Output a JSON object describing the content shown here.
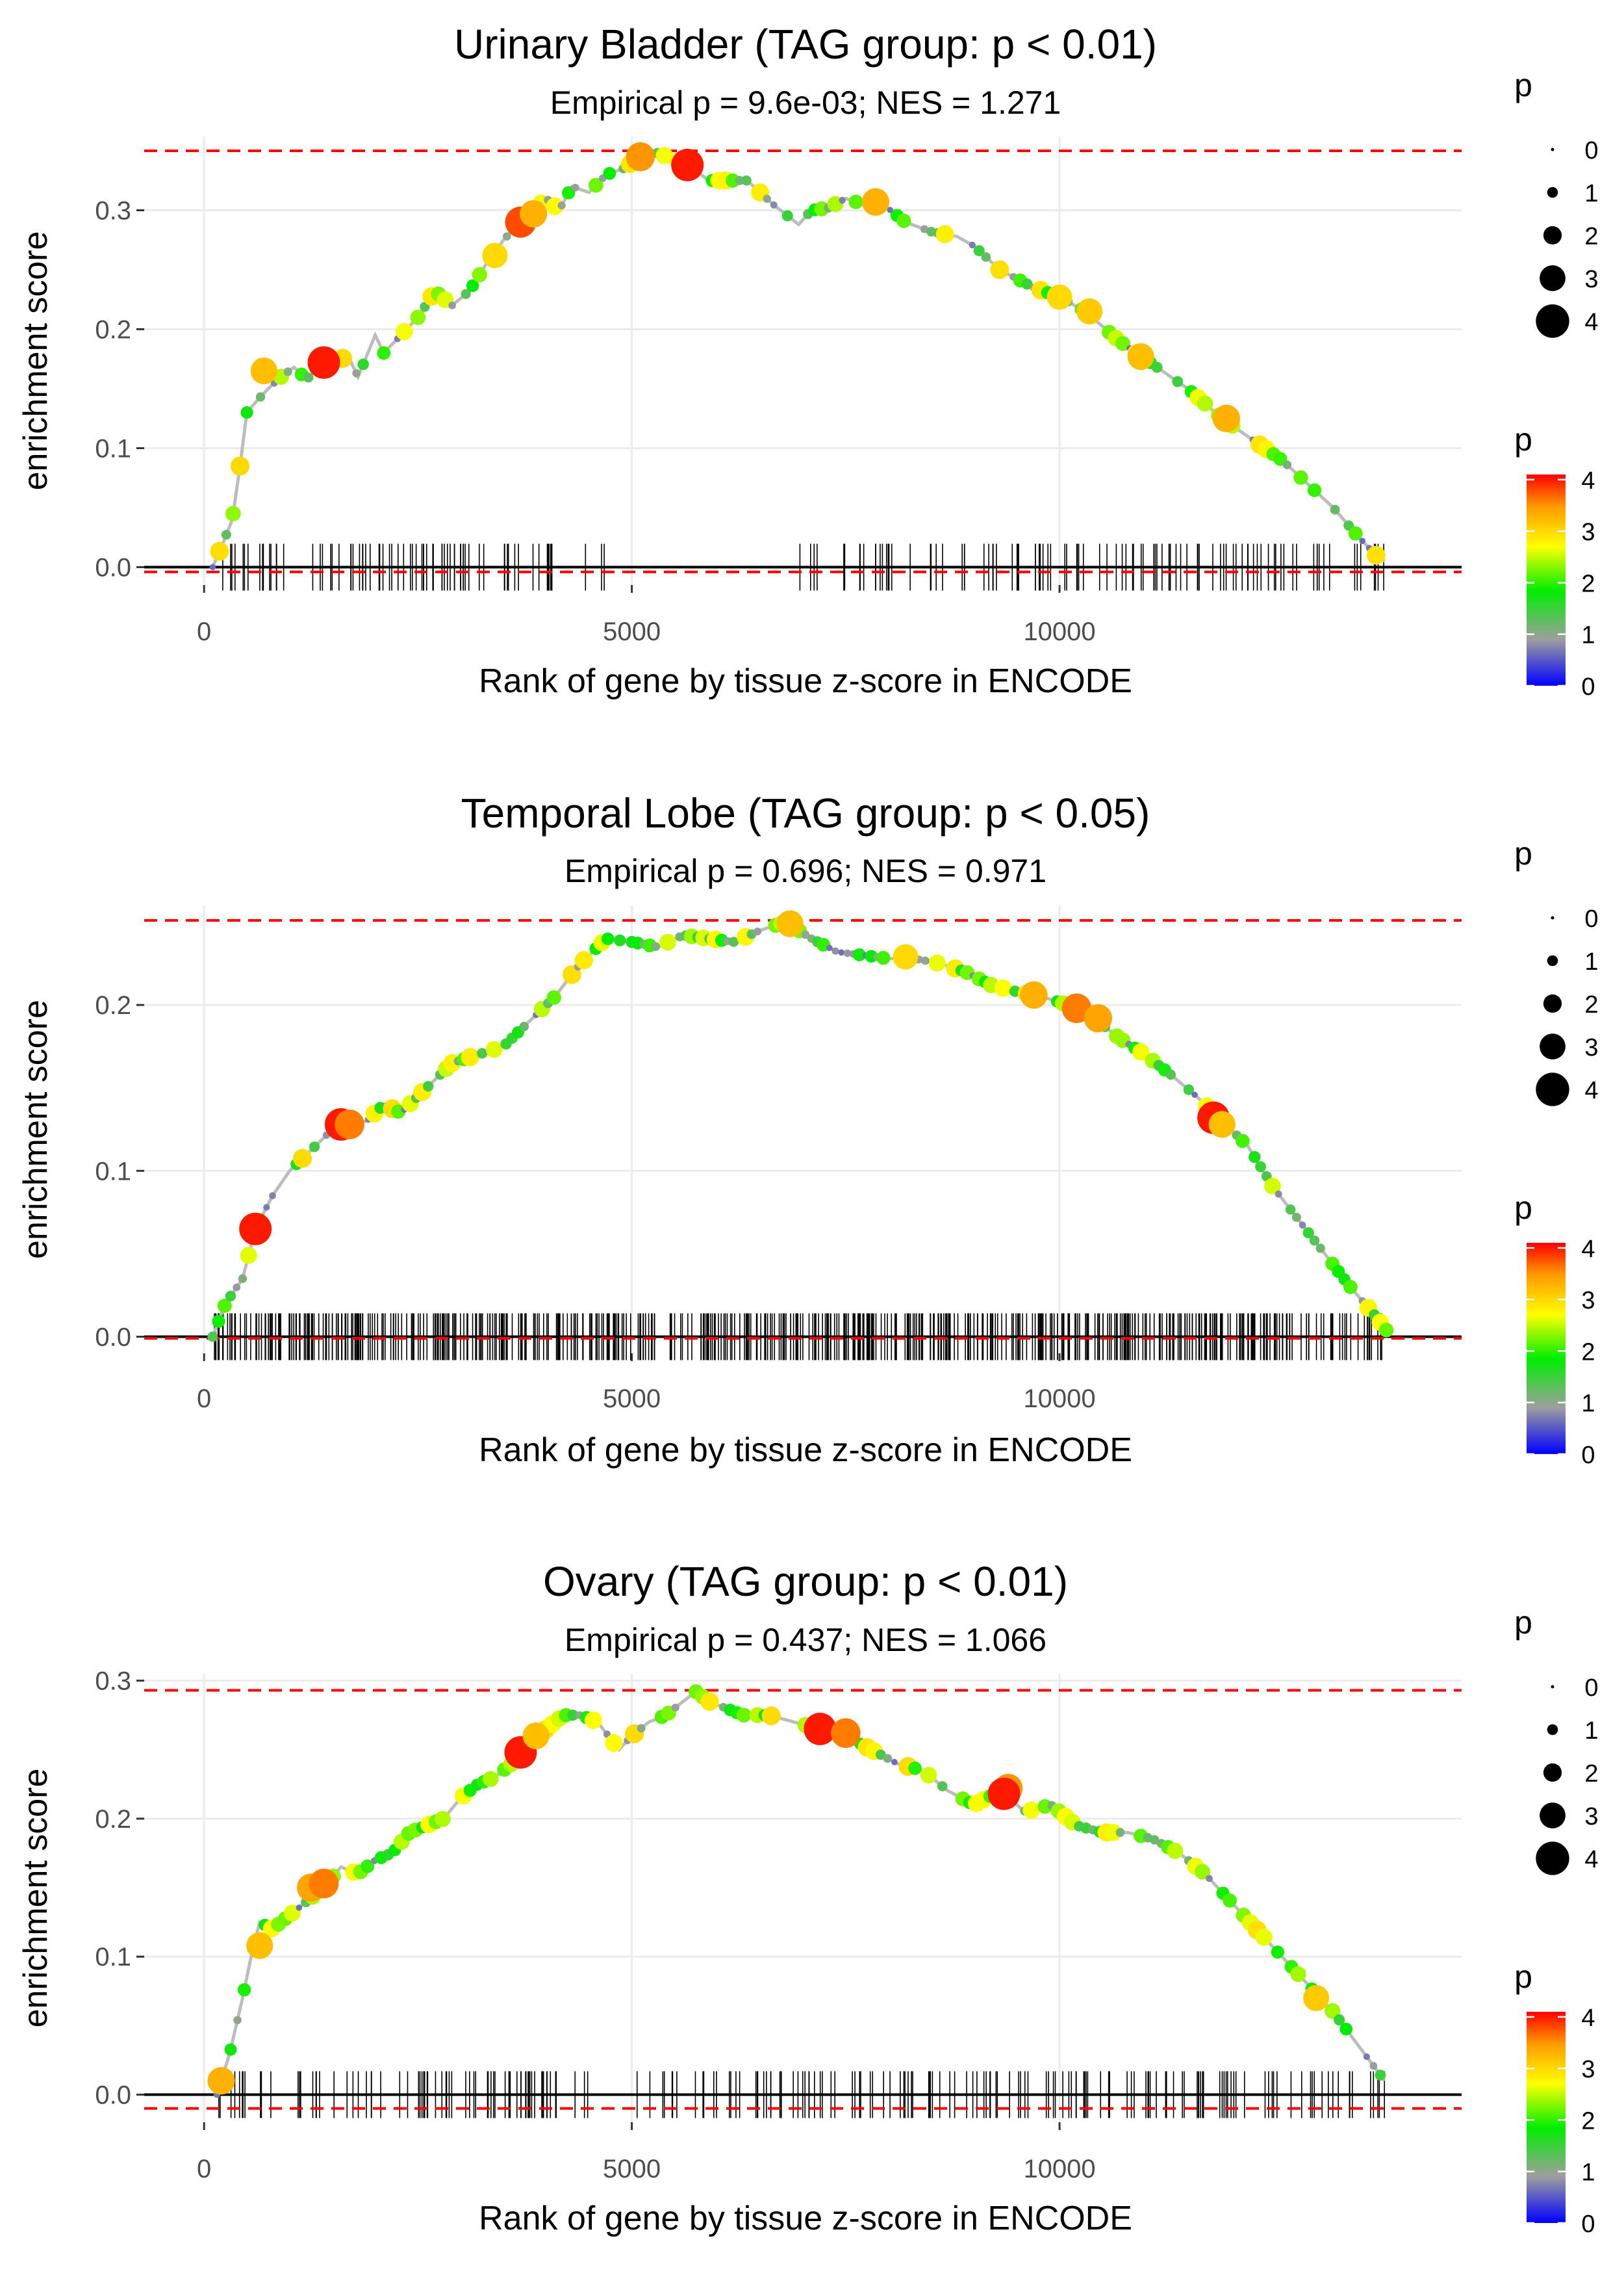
{
  "figure": {
    "x_axis_title": "Rank of gene by tissue z-score in ENCODE",
    "y_axis_title": "enrichment score",
    "legend_size_title": "p",
    "legend_color_title": "p",
    "legend_size_levels": [
      "0",
      "1",
      "2",
      "3",
      "4"
    ],
    "legend_color_ticks": [
      "4",
      "3",
      "2",
      "1",
      "0"
    ],
    "colors": {
      "line": "#bdbdbd",
      "dashed": "#ff0000",
      "grid": "#ebebeb",
      "rug": "#000000",
      "gradient": [
        "#0000ff",
        "#9e9e9e",
        "#00ee00",
        "#ffff00",
        "#ff9900",
        "#ff0000"
      ]
    }
  },
  "chart_data": [
    {
      "type": "line",
      "title": "Urinary Bladder (TAG group: p < 0.01)",
      "subtitle": "Empirical p = 9.6e-03; NES = 1.271",
      "xlabel": "Rank of gene by tissue z-score in ENCODE",
      "ylabel": "enrichment score",
      "xlim": [
        -700,
        14700
      ],
      "ylim": [
        -0.015,
        0.362
      ],
      "xticks": [
        0,
        5000,
        10000
      ],
      "xtick_labels": [
        "0",
        "5000",
        "10000"
      ],
      "yticks": [
        0.0,
        0.1,
        0.2,
        0.3
      ],
      "ytick_labels": [
        "0.0",
        "0.1",
        "0.2",
        "0.3"
      ],
      "dashed_lines": [
        0.35,
        -0.004
      ],
      "curve": [
        [
          100,
          0
        ],
        [
          220,
          0.02
        ],
        [
          330,
          0.04
        ],
        [
          420,
          0.085
        ],
        [
          500,
          0.13
        ],
        [
          620,
          0.14
        ],
        [
          750,
          0.15
        ],
        [
          900,
          0.16
        ],
        [
          1050,
          0.168
        ],
        [
          1200,
          0.158
        ],
        [
          1400,
          0.172
        ],
        [
          1550,
          0.176
        ],
        [
          1700,
          0.175
        ],
        [
          1800,
          0.16
        ],
        [
          2000,
          0.195
        ],
        [
          2100,
          0.18
        ],
        [
          2300,
          0.195
        ],
        [
          2500,
          0.21
        ],
        [
          2700,
          0.232
        ],
        [
          2900,
          0.22
        ],
        [
          3100,
          0.232
        ],
        [
          3300,
          0.255
        ],
        [
          3500,
          0.275
        ],
        [
          3700,
          0.29
        ],
        [
          3850,
          0.3
        ],
        [
          4000,
          0.31
        ],
        [
          4150,
          0.3
        ],
        [
          4300,
          0.32
        ],
        [
          4500,
          0.315
        ],
        [
          4700,
          0.33
        ],
        [
          4900,
          0.335
        ],
        [
          5100,
          0.345
        ],
        [
          5300,
          0.348
        ],
        [
          5500,
          0.343
        ],
        [
          5700,
          0.336
        ],
        [
          5900,
          0.325
        ],
        [
          6100,
          0.325
        ],
        [
          6350,
          0.325
        ],
        [
          6650,
          0.305
        ],
        [
          6950,
          0.288
        ],
        [
          7100,
          0.3
        ],
        [
          7300,
          0.302
        ],
        [
          7500,
          0.31
        ],
        [
          7700,
          0.305
        ],
        [
          7900,
          0.307
        ],
        [
          8200,
          0.29
        ],
        [
          8500,
          0.282
        ],
        [
          8800,
          0.278
        ],
        [
          9000,
          0.27
        ],
        [
          9300,
          0.25
        ],
        [
          9700,
          0.235
        ],
        [
          10000,
          0.227
        ],
        [
          10300,
          0.215
        ],
        [
          10700,
          0.19
        ],
        [
          11100,
          0.17
        ],
        [
          11500,
          0.15
        ],
        [
          11900,
          0.125
        ],
        [
          12300,
          0.105
        ],
        [
          12600,
          0.09
        ],
        [
          12900,
          0.07
        ],
        [
          13200,
          0.05
        ],
        [
          13500,
          0.025
        ],
        [
          13700,
          0.01
        ],
        [
          13800,
          0.005
        ]
      ],
      "highlight_points": [
        [
          700,
          0.165,
          3.2
        ],
        [
          1400,
          0.172,
          4.0
        ],
        [
          3700,
          0.29,
          3.8
        ],
        [
          3850,
          0.297,
          3.3
        ],
        [
          3400,
          0.262,
          3.0
        ],
        [
          5100,
          0.345,
          3.5
        ],
        [
          5650,
          0.338,
          4.0
        ],
        [
          7850,
          0.307,
          3.3
        ],
        [
          10000,
          0.227,
          3.0
        ],
        [
          10350,
          0.215,
          3.1
        ],
        [
          10950,
          0.177,
          3.2
        ],
        [
          11950,
          0.125,
          3.3
        ]
      ],
      "point_step": 80,
      "point_seed": 1,
      "rug_seed": 11,
      "rug_segments": [
        [
          100,
          4750,
          80
        ],
        [
          6950,
          8700,
          22
        ],
        [
          8800,
          9450,
          10
        ],
        [
          9500,
          13800,
          70
        ]
      ]
    },
    {
      "type": "line",
      "title": "Temporal Lobe (TAG group: p < 0.05)",
      "subtitle": "Empirical p = 0.696; NES = 0.971",
      "xlabel": "Rank of gene by tissue z-score in ENCODE",
      "ylabel": "enrichment score",
      "xlim": [
        -700,
        14700
      ],
      "ylim": [
        -0.01,
        0.26
      ],
      "xticks": [
        0,
        5000,
        10000
      ],
      "xtick_labels": [
        "0",
        "5000",
        "10000"
      ],
      "yticks": [
        0.0,
        0.1,
        0.2
      ],
      "ytick_labels": [
        "0.0",
        "0.1",
        "0.2"
      ],
      "dashed_lines": [
        0.251,
        -0.001
      ],
      "curve": [
        [
          100,
          0
        ],
        [
          250,
          0.02
        ],
        [
          450,
          0.035
        ],
        [
          600,
          0.065
        ],
        [
          800,
          0.085
        ],
        [
          1000,
          0.1
        ],
        [
          1200,
          0.11
        ],
        [
          1500,
          0.125
        ],
        [
          1700,
          0.128
        ],
        [
          1900,
          0.13
        ],
        [
          2100,
          0.14
        ],
        [
          2300,
          0.135
        ],
        [
          2600,
          0.15
        ],
        [
          2900,
          0.165
        ],
        [
          3200,
          0.17
        ],
        [
          3500,
          0.175
        ],
        [
          3800,
          0.19
        ],
        [
          4100,
          0.205
        ],
        [
          4400,
          0.225
        ],
        [
          4700,
          0.24
        ],
        [
          5000,
          0.238
        ],
        [
          5300,
          0.235
        ],
        [
          5600,
          0.242
        ],
        [
          5900,
          0.24
        ],
        [
          6200,
          0.238
        ],
        [
          6500,
          0.245
        ],
        [
          6800,
          0.25
        ],
        [
          7100,
          0.24
        ],
        [
          7400,
          0.232
        ],
        [
          7700,
          0.23
        ],
        [
          8000,
          0.228
        ],
        [
          8300,
          0.228
        ],
        [
          8600,
          0.225
        ],
        [
          8900,
          0.22
        ],
        [
          9200,
          0.212
        ],
        [
          9500,
          0.208
        ],
        [
          9800,
          0.205
        ],
        [
          10100,
          0.2
        ],
        [
          10400,
          0.192
        ],
        [
          10700,
          0.18
        ],
        [
          11000,
          0.17
        ],
        [
          11300,
          0.158
        ],
        [
          11600,
          0.145
        ],
        [
          11900,
          0.13
        ],
        [
          12200,
          0.115
        ],
        [
          12500,
          0.09
        ],
        [
          12800,
          0.07
        ],
        [
          13100,
          0.05
        ],
        [
          13400,
          0.03
        ],
        [
          13700,
          0.012
        ],
        [
          13850,
          0.002
        ]
      ],
      "highlight_points": [
        [
          600,
          0.065,
          4.0
        ],
        [
          1600,
          0.128,
          4.0
        ],
        [
          1700,
          0.128,
          3.6
        ],
        [
          6850,
          0.249,
          3.2
        ],
        [
          8200,
          0.229,
          3.0
        ],
        [
          9700,
          0.206,
          3.3
        ],
        [
          10200,
          0.198,
          3.6
        ],
        [
          10450,
          0.192,
          3.4
        ],
        [
          11800,
          0.132,
          4.0
        ],
        [
          11900,
          0.128,
          3.2
        ]
      ],
      "point_step": 70,
      "point_seed": 2,
      "rug_seed": 22,
      "rug_segments": [
        [
          100,
          13800,
          560
        ]
      ]
    },
    {
      "type": "line",
      "title": "Ovary (TAG group: p < 0.01)",
      "subtitle": "Empirical p = 0.437; NES = 1.066",
      "xlabel": "Rank of gene by tissue z-score in ENCODE",
      "ylabel": "enrichment score",
      "xlim": [
        -700,
        14700
      ],
      "ylim": [
        -0.02,
        0.305
      ],
      "xticks": [
        0,
        5000,
        10000
      ],
      "xtick_labels": [
        "0",
        "5000",
        "10000"
      ],
      "yticks": [
        0.0,
        0.1,
        0.2,
        0.3
      ],
      "ytick_labels": [
        "0.0",
        "0.1",
        "0.2",
        "0.3"
      ],
      "dashed_lines": [
        0.293,
        -0.01
      ],
      "curve": [
        [
          150,
          0
        ],
        [
          300,
          0.03
        ],
        [
          450,
          0.07
        ],
        [
          550,
          0.1
        ],
        [
          650,
          0.125
        ],
        [
          800,
          0.12
        ],
        [
          1000,
          0.13
        ],
        [
          1200,
          0.14
        ],
        [
          1400,
          0.15
        ],
        [
          1600,
          0.165
        ],
        [
          1800,
          0.16
        ],
        [
          2000,
          0.17
        ],
        [
          2200,
          0.175
        ],
        [
          2400,
          0.19
        ],
        [
          2600,
          0.195
        ],
        [
          2800,
          0.2
        ],
        [
          3000,
          0.215
        ],
        [
          3200,
          0.225
        ],
        [
          3400,
          0.23
        ],
        [
          3600,
          0.24
        ],
        [
          3800,
          0.255
        ],
        [
          4000,
          0.265
        ],
        [
          4200,
          0.275
        ],
        [
          4400,
          0.275
        ],
        [
          4600,
          0.27
        ],
        [
          4850,
          0.25
        ],
        [
          5000,
          0.26
        ],
        [
          5200,
          0.27
        ],
        [
          5400,
          0.275
        ],
        [
          5600,
          0.285
        ],
        [
          5750,
          0.292
        ],
        [
          5900,
          0.285
        ],
        [
          6100,
          0.28
        ],
        [
          6300,
          0.275
        ],
        [
          6600,
          0.275
        ],
        [
          6900,
          0.27
        ],
        [
          7200,
          0.265
        ],
        [
          7500,
          0.26
        ],
        [
          7800,
          0.25
        ],
        [
          8100,
          0.24
        ],
        [
          8400,
          0.235
        ],
        [
          8700,
          0.22
        ],
        [
          9000,
          0.21
        ],
        [
          9300,
          0.22
        ],
        [
          9600,
          0.205
        ],
        [
          9900,
          0.21
        ],
        [
          10200,
          0.195
        ],
        [
          10500,
          0.19
        ],
        [
          10800,
          0.19
        ],
        [
          11100,
          0.185
        ],
        [
          11400,
          0.175
        ],
        [
          11700,
          0.16
        ],
        [
          12000,
          0.14
        ],
        [
          12300,
          0.12
        ],
        [
          12600,
          0.1
        ],
        [
          12900,
          0.08
        ],
        [
          13200,
          0.06
        ],
        [
          13500,
          0.035
        ],
        [
          13800,
          0.01
        ]
      ],
      "highlight_points": [
        [
          200,
          0.01,
          3.3
        ],
        [
          650,
          0.108,
          3.2
        ],
        [
          1250,
          0.15,
          3.4
        ],
        [
          1400,
          0.153,
          3.6
        ],
        [
          3700,
          0.248,
          4.0
        ],
        [
          3880,
          0.26,
          3.2
        ],
        [
          7200,
          0.265,
          4.0
        ],
        [
          7500,
          0.262,
          3.6
        ],
        [
          9400,
          0.222,
          3.5
        ],
        [
          9350,
          0.218,
          4.0
        ],
        [
          13000,
          0.07,
          3.1
        ]
      ],
      "point_step": 80,
      "point_seed": 3,
      "rug_seed": 33,
      "rug_segments": [
        [
          100,
          4500,
          75
        ],
        [
          5000,
          6000,
          12
        ],
        [
          6100,
          8600,
          45
        ],
        [
          8700,
          9000,
          4
        ],
        [
          9000,
          9450,
          8
        ],
        [
          9500,
          13800,
          70
        ]
      ]
    }
  ]
}
